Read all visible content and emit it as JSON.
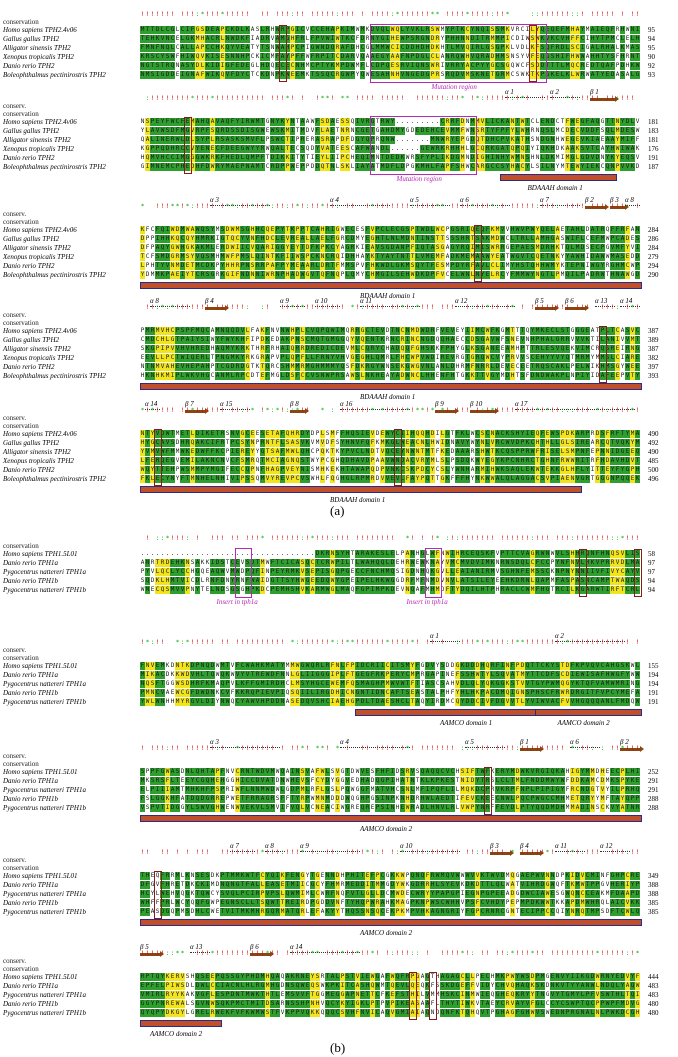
{
  "colors": {
    "identical": "#2e9e2e",
    "similar": "#f2e41c",
    "variable": "#ffffff",
    "domain": "#c0502a"
  },
  "labels": {
    "conservation": "conservation",
    "conserv": "conserv."
  },
  "panel_a": {
    "label": "(a)",
    "species": [
      "Homo sapiens TPH2.4v06",
      "Gallus gallus TPH2",
      "Alligator sinensis TPH2",
      "Xenopus tropicalis TPH2",
      "Danio rerio TPH2",
      "Boleophthalmus pectinirostris TPH2"
    ],
    "blocks": [
      {
        "numbers": [
          "95",
          "94",
          "95",
          "90",
          "92",
          "93"
        ],
        "ss": [],
        "annotations": [
          "Mutation region"
        ],
        "domain": ""
      },
      {
        "numbers": [
          "181",
          "183",
          "181",
          "176",
          "191",
          "187"
        ],
        "ss": [
          "α 1",
          "α 2",
          "β 1"
        ],
        "annotations": [
          "Mutation region"
        ],
        "domain": "BDAAAH domain 1"
      },
      {
        "numbers": [
          "284",
          "286",
          "284",
          "279",
          "294",
          "290"
        ],
        "ss": [
          "α 3",
          "α 4",
          "α 5",
          "α 6",
          "α 7",
          "β 2",
          "β 3",
          "α 8"
        ],
        "annotations": [],
        "domain": "BDAAAH domain 1"
      },
      {
        "numbers": [
          "387",
          "389",
          "387",
          "382",
          "397",
          "393"
        ],
        "ss": [
          "α 8",
          "β 4",
          "α 9",
          "α 10",
          "α 11",
          "α 12",
          "β 5",
          "β 6",
          "α 13",
          "α 14"
        ],
        "annotations": [],
        "domain": "BDAAAH domain 1"
      },
      {
        "numbers": [
          "490",
          "492",
          "490",
          "485",
          "500",
          "496"
        ],
        "ss": [
          "α 14",
          "β 7",
          "α 15",
          "β 8",
          "α 16",
          "β 9",
          "β 10",
          "α 17"
        ],
        "annotations": [],
        "domain": "BDAAAH domain 1"
      }
    ]
  },
  "panel_b": {
    "label": "(b)",
    "species": [
      "Homo sapiens TPH1.5L01",
      "Danio rerio TPH1a",
      "Pygocentrus nattereri TPH1a",
      "Danio rerio TPH1b",
      "Pygocentrus nattereri TPH1b"
    ],
    "blocks": [
      {
        "numbers": [
          "58",
          "97",
          "97",
          "94",
          "94"
        ],
        "ss": [],
        "annotations": [
          "Insert in tph1a",
          "Insert in tph1a"
        ],
        "domain": ""
      },
      {
        "numbers": [
          "155",
          "194",
          "194",
          "191",
          "191"
        ],
        "ss": [
          "α 1",
          "α 2"
        ],
        "annotations": [],
        "domain": "AAMCO domain 1",
        "domain2": "AAMCO domain 2"
      },
      {
        "numbers": [
          "252",
          "291",
          "291",
          "288",
          "288"
        ],
        "ss": [
          "α 3",
          "α 4",
          "α 5",
          "β 1",
          "α 6",
          "β 2"
        ],
        "annotations": [],
        "domain": "AAMCO domain 2"
      },
      {
        "numbers": [
          "349",
          "388",
          "388",
          "385",
          "385"
        ],
        "ss": [
          "α 7",
          "α 8",
          "α 9",
          "α 10",
          "β 3",
          "β 4",
          "α 11",
          "α 12"
        ],
        "annotations": [],
        "domain": "AAMCO domain 2"
      },
      {
        "numbers": [
          "444",
          "483",
          "483",
          "480",
          "480"
        ],
        "ss": [
          "β 5",
          "α 13",
          "β 6",
          "α 14"
        ],
        "annotations": [],
        "domain": "AAMCO domain 2"
      }
    ]
  }
}
